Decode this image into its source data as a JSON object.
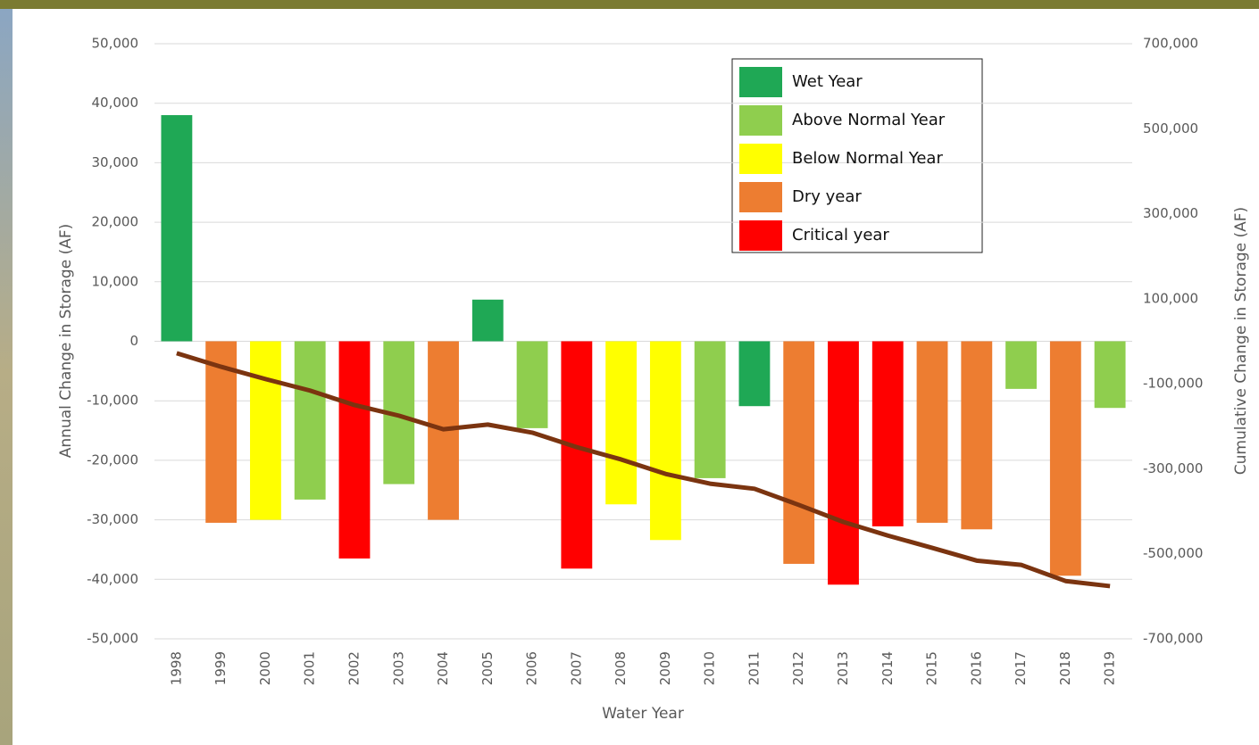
{
  "chart_data": {
    "type": "bar",
    "x_label": "Water Year",
    "y_label": "Annual Change in Storage (AF)",
    "y2_label": "Cumulative Change in Storage (AF)",
    "categories": [
      "1998",
      "1999",
      "2000",
      "2001",
      "2002",
      "2003",
      "2004",
      "2005",
      "2006",
      "2007",
      "2008",
      "2009",
      "2010",
      "2011",
      "2012",
      "2013",
      "2014",
      "2015",
      "2016",
      "2017",
      "2018",
      "2019"
    ],
    "series": [
      {
        "name": "Wet Year",
        "color": "#1fa855",
        "values": [
          38000,
          null,
          null,
          null,
          null,
          null,
          null,
          7000,
          null,
          null,
          null,
          null,
          null,
          -10900,
          null,
          null,
          null,
          null,
          null,
          null,
          null,
          null
        ]
      },
      {
        "name": "Above Normal Year",
        "color": "#8fce4e",
        "values": [
          null,
          null,
          null,
          -26600,
          null,
          -24000,
          null,
          null,
          -14600,
          null,
          null,
          null,
          -23000,
          null,
          null,
          null,
          null,
          null,
          null,
          -8000,
          null,
          -11200
        ]
      },
      {
        "name": "Below Normal Year",
        "color": "#ffff00",
        "values": [
          null,
          null,
          -30000,
          null,
          null,
          null,
          null,
          null,
          null,
          null,
          -27400,
          -33400,
          null,
          null,
          null,
          null,
          null,
          null,
          null,
          null,
          null,
          null
        ]
      },
      {
        "name": "Dry year",
        "color": "#ed7d31",
        "values": [
          null,
          -30500,
          null,
          null,
          null,
          null,
          -30000,
          null,
          null,
          null,
          null,
          null,
          null,
          null,
          -37400,
          null,
          null,
          -30500,
          -31600,
          null,
          -39400,
          null
        ]
      },
      {
        "name": "Critical year",
        "color": "#ff0000",
        "values": [
          null,
          null,
          null,
          null,
          -36500,
          null,
          null,
          null,
          null,
          -38200,
          null,
          null,
          null,
          null,
          null,
          -40900,
          -31100,
          null,
          null,
          null,
          null,
          null
        ]
      },
      {
        "type": "line",
        "axis": "y2",
        "color": "#7b3410",
        "values": [
          -28000,
          -60000,
          -89000,
          -116000,
          -150000,
          -175000,
          -207000,
          -196000,
          -215000,
          -249000,
          -278000,
          -312000,
          -335000,
          -347000,
          -385000,
          -425000,
          -457000,
          -486000,
          -516000,
          -526000,
          -564000,
          -576000
        ]
      }
    ],
    "ylim": [
      -50000,
      50000
    ],
    "yticks": [
      {
        "value": -50000,
        "label": "-50,000"
      },
      {
        "value": -40000,
        "label": "-40,000"
      },
      {
        "value": -30000,
        "label": "-30,000"
      },
      {
        "value": -20000,
        "label": "-20,000"
      },
      {
        "value": -10000,
        "label": "-10,000"
      },
      0,
      {
        "value": 10000,
        "label": "10,000"
      },
      {
        "value": 20000,
        "label": "20,000"
      },
      {
        "value": 30000,
        "label": "30,000"
      },
      {
        "value": 40000,
        "label": "40,000"
      },
      {
        "value": 50000,
        "label": "50,000"
      }
    ],
    "y2lim": [
      -700000,
      700000
    ],
    "y2ticks": [
      {
        "value": -700000,
        "label": "-700,000"
      },
      {
        "value": -500000,
        "label": "-500,000"
      },
      {
        "value": -300000,
        "label": "-300,000"
      },
      {
        "value": -100000,
        "label": "-100,000"
      },
      {
        "value": 100000,
        "label": "100,000"
      },
      {
        "value": 300000,
        "label": "300,000"
      },
      {
        "value": 500000,
        "label": "500,000"
      },
      {
        "value": 700000,
        "label": "700,000"
      }
    ],
    "grid": true
  }
}
